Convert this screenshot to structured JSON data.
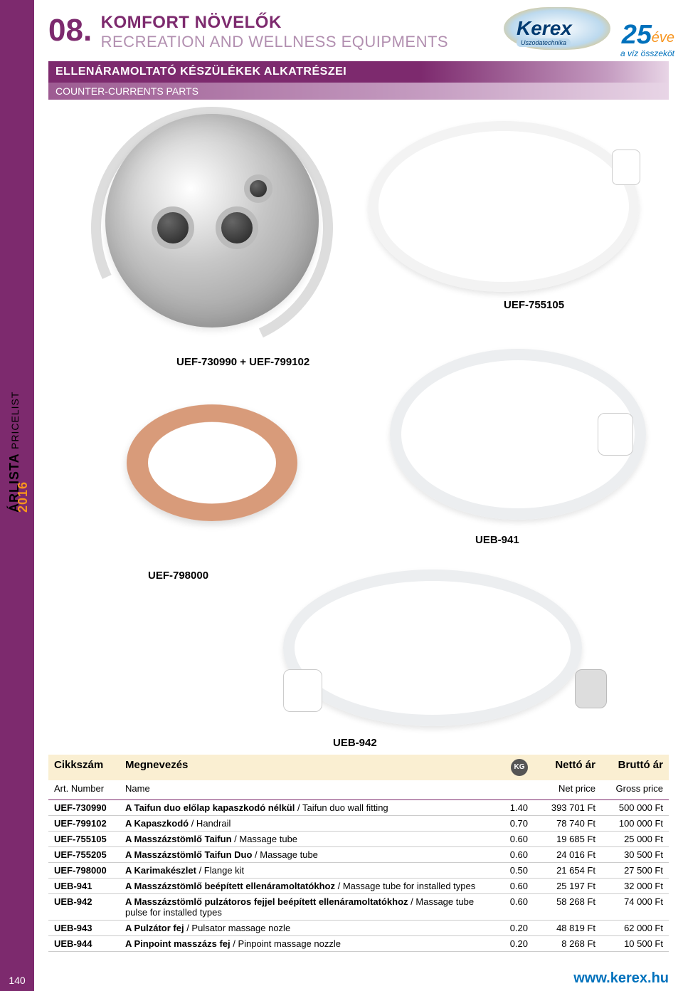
{
  "section_number": "08.",
  "title_hu": "KOMFORT NÖVELŐK",
  "title_en": "RECREATION AND WELLNESS EQUIPMENTS",
  "banner_hu": "ELLENÁRAMOLTATÓ KÉSZÜLÉKEK ALKATRÉSZEI",
  "banner_en": "COUNTER-CURRENTS PARTS",
  "sidebar": {
    "main": "ÁRLISTA",
    "sub": "PRICELIST",
    "year": "2016"
  },
  "logo": {
    "brand": "Kerex",
    "brand_sub": "Uszodatechnika",
    "years": "25",
    "years_label": "éve",
    "tagline": "a víz összeköt"
  },
  "product_labels": {
    "p1": "UEF-755105",
    "p2": "UEF-730990 + UEF-799102",
    "p3": "UEB-941",
    "p4": "UEF-798000",
    "p5": "UEB-942"
  },
  "table": {
    "head_hu": {
      "art": "Cikkszám",
      "name": "Megnevezés",
      "net": "Nettó ár",
      "gross": "Bruttó ár"
    },
    "head_en": {
      "art": "Art. Number",
      "name": "Name",
      "net": "Net price",
      "gross": "Gross price"
    },
    "kg_label": "KG",
    "rows": [
      {
        "art": "UEF-730990",
        "name_hu": "A Taifun duo előlap kapaszkodó nélkül",
        "name_en": " / Taifun duo wall fitting",
        "kg": "1.40",
        "net": "393 701 Ft",
        "gross": "500 000 Ft"
      },
      {
        "art": "UEF-799102",
        "name_hu": "A Kapaszkodó",
        "name_en": " / Handrail",
        "kg": "0.70",
        "net": "78 740 Ft",
        "gross": "100 000 Ft"
      },
      {
        "art": "UEF-755105",
        "name_hu": "A Masszázstömlő Taifun",
        "name_en": " / Massage tube",
        "kg": "0.60",
        "net": "19 685 Ft",
        "gross": "25 000 Ft"
      },
      {
        "art": "UEF-755205",
        "name_hu": "A Masszázstömlő Taifun Duo",
        "name_en": " / Massage tube",
        "kg": "0.60",
        "net": "24 016 Ft",
        "gross": "30 500 Ft"
      },
      {
        "art": "UEF-798000",
        "name_hu": "A Karimakészlet",
        "name_en": " / Flange kit",
        "kg": "0.50",
        "net": "21 654 Ft",
        "gross": "27 500 Ft"
      },
      {
        "art": "UEB-941",
        "name_hu": "A Masszázstömlő beépített ellenáramoltatókhoz",
        "name_en": " / Massage tube for installed types",
        "kg": "0.60",
        "net": "25 197 Ft",
        "gross": "32 000 Ft"
      },
      {
        "art": "UEB-942",
        "name_hu": "A Masszázstömlő pulzátoros fejjel beépített ellenáramoltatókhoz",
        "name_en": " / Massage tube pulse for installed types",
        "kg": "0.60",
        "net": "58 268 Ft",
        "gross": "74 000 Ft"
      },
      {
        "art": "UEB-943",
        "name_hu": "A Pulzátor fej",
        "name_en": " / Pulsator massage nozle",
        "kg": "0.20",
        "net": "48 819 Ft",
        "gross": "62 000 Ft"
      },
      {
        "art": "UEB-944",
        "name_hu": "A Pinpoint masszázs fej",
        "name_en": " / Pinpoint massage nozzle",
        "kg": "0.20",
        "net": "8 268 Ft",
        "gross": "10 500 Ft"
      }
    ]
  },
  "page_number": "140",
  "website": "www.kerex.hu",
  "colors": {
    "brand_purple": "#7d2a6e",
    "brand_purple_light": "#c49bc0",
    "orange": "#f7941d",
    "blue": "#0071bc",
    "table_head_bg": "#faefd2"
  }
}
